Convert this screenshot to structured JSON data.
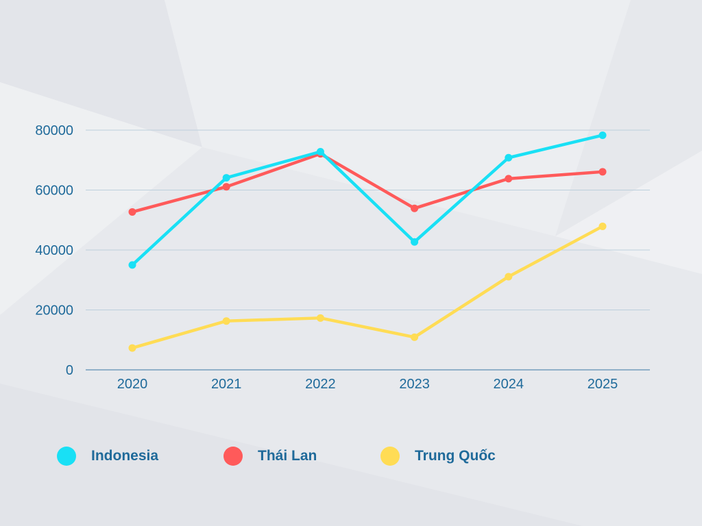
{
  "chart_data": {
    "type": "line",
    "title": "",
    "xlabel": "",
    "ylabel": "",
    "categories": [
      "2020",
      "2021",
      "2022",
      "2023",
      "2024",
      "2025"
    ],
    "ylim": [
      0,
      80000
    ],
    "yticks": [
      "0",
      "20000",
      "40000",
      "60000",
      "80000"
    ],
    "grid": true,
    "legend_position": "bottom",
    "series": [
      {
        "name": "Indonesia",
        "color": "#19e0f5",
        "values": [
          35000,
          64100,
          72800,
          42700,
          70800,
          78300
        ]
      },
      {
        "name": "Thái Lan",
        "color": "#ff5a5a",
        "values": [
          52700,
          61100,
          72100,
          53900,
          63800,
          66100
        ]
      },
      {
        "name": "Trung Quốc",
        "color": "#ffdc55",
        "values": [
          7300,
          16300,
          17300,
          10900,
          31100,
          47900
        ]
      }
    ]
  }
}
